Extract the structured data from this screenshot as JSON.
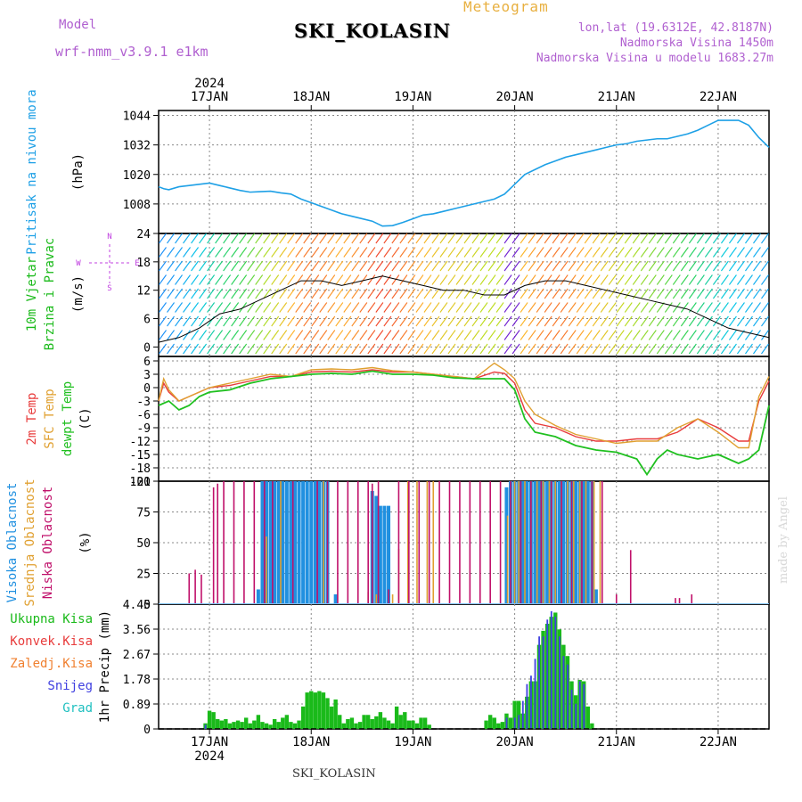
{
  "header": {
    "model_label": "Model",
    "model_name": "wrf-nmm_v3.9.1 e1km",
    "station": "SKI_KOLASIN",
    "product": "Meteogram",
    "lonlat": "lon,lat (19.6312E, 42.8187N)",
    "elevation": "Nadmorska Visina 1450m",
    "elevation_model": "Nadmorska Visina u modelu 1683.27m"
  },
  "footer_station": "SKI_KOLASIN",
  "credit": "made by Angel",
  "colors": {
    "pressure": "#1ea0e6",
    "t2m": "#e83c3c",
    "tsfc": "#e0a030",
    "dewpoint": "#20c020",
    "cloud_high": "#2090e0",
    "cloud_mid": "#e0a030",
    "cloud_low": "#c0106a",
    "precip_total": "#1aba1a",
    "precip_conv": "#e83c3c",
    "precip_freezing": "#f08030",
    "precip_snow": "#4040e0",
    "precip_hail": "#20c0c0",
    "barb_direction_label": "#c040e0"
  },
  "chart_data": [
    {
      "type": "line",
      "panel": "pressure",
      "ylabel": "Pritisak na nivou mora",
      "unit": "(hPa)",
      "ylim": [
        996,
        1046
      ],
      "yticks": [
        1008,
        1020,
        1032,
        1044
      ],
      "top_labels": [
        "2024",
        "17JAN",
        "18JAN",
        "19JAN",
        "20JAN",
        "21JAN",
        "22JAN"
      ],
      "x_unit": "days from 17JAN 00UTC",
      "x_range": [
        -0.5,
        5.5
      ],
      "series": [
        {
          "x": [
            -0.5,
            -0.45,
            -0.4,
            -0.3,
            -0.2,
            -0.1,
            0,
            0.1,
            0.2,
            0.3,
            0.4,
            0.5,
            0.6,
            0.7,
            0.8,
            0.9,
            1.0,
            1.1,
            1.2,
            1.3,
            1.4,
            1.5,
            1.6,
            1.7,
            1.8,
            1.9,
            2.0,
            2.1,
            2.2,
            2.3,
            2.4,
            2.5,
            2.6,
            2.7,
            2.8,
            2.9,
            3.0,
            3.1,
            3.2,
            3.3,
            3.4,
            3.5,
            3.6,
            3.7,
            3.8,
            3.9,
            4.0,
            4.1,
            4.2,
            4.3,
            4.4,
            4.5,
            4.6,
            4.7,
            4.8,
            4.9,
            5.0,
            5.1,
            5.2,
            5.3,
            5.4,
            5.5
          ],
          "values": [
            1015,
            1014.2,
            1013.8,
            1015,
            1015.5,
            1016,
            1016.5,
            1015.5,
            1014.5,
            1013.5,
            1012.8,
            1013,
            1013.2,
            1012.5,
            1012,
            1010,
            1008.5,
            1007,
            1005.5,
            1004,
            1003,
            1002,
            1001,
            999,
            999.2,
            1000.5,
            1002,
            1003.5,
            1004,
            1005,
            1006,
            1007,
            1008,
            1009,
            1010,
            1012,
            1016,
            1020,
            1022,
            1024,
            1025.5,
            1027,
            1028,
            1029,
            1030,
            1031,
            1032,
            1032.5,
            1033.5,
            1034,
            1034.5,
            1034.5,
            1035.5,
            1036.5,
            1038,
            1040,
            1042,
            1042,
            1042,
            1040,
            1035,
            1031
          ]
        }
      ]
    },
    {
      "type": "scatter",
      "panel": "wind",
      "ylabel": "10m Vjetar Brzina i Pravac",
      "unit": "(m/s)",
      "ylim": [
        -2,
        24
      ],
      "yticks": [
        0,
        6,
        12,
        18,
        24
      ],
      "direction_compass": [
        "N",
        "W",
        "E",
        "S"
      ],
      "series": [
        {
          "name": "wind speed",
          "x": [
            -0.5,
            -0.3,
            -0.1,
            0.1,
            0.3,
            0.5,
            0.7,
            0.9,
            1.1,
            1.3,
            1.5,
            1.7,
            1.9,
            2.1,
            2.3,
            2.5,
            2.7,
            2.9,
            3.1,
            3.3,
            3.5,
            3.7,
            3.9,
            4.1,
            4.3,
            4.5,
            4.7,
            4.9,
            5.1,
            5.3,
            5.5
          ],
          "values": [
            1,
            2,
            4,
            7,
            8,
            10,
            12,
            14,
            14,
            13,
            14,
            15,
            14,
            13,
            12,
            12,
            11,
            11,
            13,
            14,
            14,
            13,
            12,
            11,
            10,
            9,
            8,
            6,
            4,
            3,
            2
          ]
        }
      ]
    },
    {
      "type": "line",
      "panel": "temperature",
      "ylabels": [
        "2m Temp",
        "SFC Temp",
        "dewpt Temp"
      ],
      "unit": "(C)",
      "ylim": [
        -21,
        7
      ],
      "yticks": [
        -21,
        -18,
        -15,
        -12,
        -9,
        -6,
        -3,
        0,
        3,
        6
      ],
      "series": [
        {
          "name": "2m Temp",
          "x": [
            -0.5,
            -0.45,
            -0.4,
            -0.3,
            -0.2,
            -0.1,
            0,
            0.2,
            0.4,
            0.6,
            0.8,
            1.0,
            1.2,
            1.4,
            1.6,
            1.8,
            2.0,
            2.2,
            2.4,
            2.6,
            2.8,
            2.9,
            3.0,
            3.1,
            3.2,
            3.4,
            3.6,
            3.8,
            4.0,
            4.2,
            4.4,
            4.6,
            4.8,
            5.0,
            5.2,
            5.3,
            5.4,
            5.5
          ],
          "values": [
            -3,
            1,
            -1,
            -3,
            -2,
            -1,
            0,
            0.5,
            1.5,
            2.5,
            2.5,
            3.5,
            3.7,
            3.5,
            4,
            3.5,
            3.5,
            3,
            2.5,
            2,
            3.5,
            3.2,
            1,
            -5,
            -8,
            -9,
            -11,
            -12,
            -12,
            -11.5,
            -11.5,
            -10,
            -7,
            -9,
            -12,
            -12,
            -3,
            1.5
          ]
        },
        {
          "name": "SFC Temp",
          "x": [
            -0.5,
            -0.45,
            -0.4,
            -0.3,
            -0.2,
            -0.1,
            0,
            0.2,
            0.4,
            0.6,
            0.8,
            1.0,
            1.2,
            1.4,
            1.6,
            1.8,
            2.0,
            2.2,
            2.4,
            2.6,
            2.8,
            2.9,
            3.0,
            3.1,
            3.2,
            3.4,
            3.6,
            3.8,
            4.0,
            4.2,
            4.4,
            4.6,
            4.8,
            5.0,
            5.2,
            5.3,
            5.4,
            5.5
          ],
          "values": [
            -3,
            2,
            -0.5,
            -3,
            -2,
            -1,
            0,
            1,
            2,
            3,
            2.5,
            4,
            4.2,
            4,
            4.5,
            3.8,
            3.5,
            3,
            2.5,
            2,
            5.5,
            4,
            2,
            -3,
            -6,
            -8.5,
            -10.5,
            -11.5,
            -12.5,
            -12,
            -12,
            -9,
            -7,
            -10,
            -13.5,
            -13.5,
            -2,
            2.5
          ]
        },
        {
          "name": "dewpt Temp",
          "x": [
            -0.5,
            -0.4,
            -0.3,
            -0.2,
            -0.1,
            0,
            0.2,
            0.4,
            0.6,
            0.8,
            1.0,
            1.2,
            1.4,
            1.6,
            1.8,
            2.0,
            2.2,
            2.4,
            2.6,
            2.8,
            2.9,
            3.0,
            3.1,
            3.2,
            3.4,
            3.6,
            3.8,
            4.0,
            4.2,
            4.3,
            4.4,
            4.5,
            4.6,
            4.8,
            5.0,
            5.2,
            5.3,
            5.4,
            5.5
          ],
          "values": [
            -4,
            -3,
            -5,
            -4,
            -2,
            -1,
            -0.5,
            1,
            2,
            2.5,
            3,
            3.2,
            3,
            3.7,
            3,
            3,
            2.8,
            2.2,
            2,
            2,
            2,
            -0.5,
            -7,
            -10,
            -11,
            -13,
            -14,
            -14.5,
            -16,
            -19.5,
            -16,
            -14,
            -15,
            -16,
            -15,
            -17,
            -16,
            -14,
            -4
          ]
        }
      ]
    },
    {
      "type": "bar",
      "panel": "clouds",
      "ylabels": [
        "Visoka Oblacnost",
        "Srednja Oblacnost",
        "Niska Oblacnost"
      ],
      "unit": "(%)",
      "ylim": [
        0,
        100
      ],
      "yticks": [
        0,
        25,
        50,
        75,
        100
      ],
      "series": [
        {
          "name": "Visoka Oblacnost",
          "x": [
            0.48,
            0.52,
            0.56,
            0.6,
            0.64,
            0.68,
            0.72,
            0.76,
            0.8,
            0.84,
            0.88,
            0.92,
            0.96,
            1.0,
            1.04,
            1.08,
            1.12,
            1.16,
            1.24,
            1.6,
            1.64,
            1.68,
            1.72,
            1.76,
            2.92,
            2.96,
            3.0,
            3.04,
            3.08,
            3.12,
            3.16,
            3.2,
            3.24,
            3.28,
            3.32,
            3.36,
            3.4,
            3.44,
            3.48,
            3.52,
            3.56,
            3.6,
            3.64,
            3.68,
            3.72,
            3.76,
            3.8
          ],
          "values": [
            12,
            100,
            100,
            100,
            100,
            100,
            100,
            100,
            100,
            100,
            100,
            100,
            100,
            100,
            100,
            100,
            100,
            100,
            8,
            92,
            88,
            80,
            80,
            80,
            95,
            100,
            100,
            100,
            100,
            100,
            100,
            100,
            100,
            100,
            100,
            100,
            100,
            100,
            100,
            100,
            100,
            100,
            100,
            100,
            100,
            100,
            12
          ]
        },
        {
          "name": "Srednja Oblacnost",
          "x": [
            0.56,
            0.7,
            1.12,
            1.56,
            1.64,
            1.8,
            1.86,
            1.95,
            2.04,
            2.14,
            2.2,
            2.93,
            3.0,
            3.04,
            3.1,
            3.16,
            3.22,
            3.28,
            3.34,
            3.4,
            3.46,
            3.52,
            3.58,
            3.64,
            3.7,
            3.78,
            3.84
          ],
          "values": [
            55,
            100,
            100,
            10,
            8,
            8,
            45,
            100,
            100,
            100,
            100,
            72,
            100,
            100,
            100,
            100,
            100,
            100,
            100,
            100,
            100,
            100,
            100,
            100,
            100,
            100,
            100
          ]
        },
        {
          "name": "Niska Oblacnost",
          "x": [
            -0.2,
            -0.14,
            -0.08,
            0.04,
            0.08,
            0.14,
            0.24,
            0.34,
            0.44,
            0.54,
            0.62,
            0.82,
            1.06,
            1.16,
            1.26,
            1.36,
            1.46,
            1.56,
            1.6,
            1.66,
            1.76,
            1.86,
            1.96,
            2.06,
            2.16,
            2.26,
            2.36,
            2.46,
            2.56,
            2.66,
            2.76,
            2.86,
            2.96,
            3.06,
            3.16,
            3.26,
            3.36,
            3.46,
            3.56,
            3.66,
            3.76,
            3.86,
            4.0,
            4.14,
            4.58,
            4.62,
            4.74
          ],
          "values": [
            25,
            28,
            24,
            95,
            98,
            100,
            100,
            100,
            100,
            100,
            100,
            100,
            100,
            100,
            100,
            100,
            100,
            100,
            98,
            100,
            12,
            100,
            100,
            100,
            100,
            100,
            100,
            100,
            100,
            100,
            100,
            100,
            100,
            100,
            100,
            100,
            100,
            100,
            100,
            100,
            100,
            100,
            8,
            44,
            5,
            5,
            8
          ]
        }
      ]
    },
    {
      "type": "bar",
      "panel": "precipitation",
      "ylabel": "1hr Precip",
      "unit": "(mm)",
      "ylim": [
        0,
        4.45
      ],
      "yticks": [
        0,
        0.89,
        1.78,
        2.67,
        3.56,
        4.45
      ],
      "legend": [
        "Ukupna Kisa",
        "Konvek.Kisa",
        "Zaledj.Kisa",
        "Snijeg",
        "Grad"
      ],
      "x_labels": [
        "17JAN",
        "18JAN",
        "19JAN",
        "20JAN",
        "21JAN",
        "22JAN"
      ],
      "x_sublabel": "2024",
      "series": [
        {
          "name": "Ukupna Kisa",
          "x": [
            -0.04,
            0.0,
            0.04,
            0.08,
            0.12,
            0.16,
            0.2,
            0.24,
            0.28,
            0.32,
            0.36,
            0.4,
            0.44,
            0.48,
            0.52,
            0.56,
            0.6,
            0.64,
            0.68,
            0.72,
            0.76,
            0.8,
            0.84,
            0.88,
            0.92,
            0.96,
            1.0,
            1.04,
            1.08,
            1.12,
            1.16,
            1.2,
            1.24,
            1.28,
            1.32,
            1.36,
            1.4,
            1.44,
            1.48,
            1.52,
            1.56,
            1.6,
            1.64,
            1.68,
            1.72,
            1.76,
            1.8,
            1.84,
            1.88,
            1.92,
            1.96,
            2.0,
            2.04,
            2.08,
            2.12,
            2.16,
            2.72,
            2.76,
            2.8,
            2.84,
            2.88,
            2.92,
            2.96,
            3.0,
            3.04,
            3.08,
            3.12,
            3.16,
            3.2,
            3.24,
            3.28,
            3.32,
            3.36,
            3.4,
            3.44,
            3.48,
            3.52,
            3.56,
            3.6,
            3.64,
            3.68,
            3.72,
            3.76
          ],
          "values": [
            0.2,
            0.65,
            0.6,
            0.35,
            0.3,
            0.35,
            0.2,
            0.25,
            0.3,
            0.25,
            0.4,
            0.2,
            0.3,
            0.5,
            0.25,
            0.2,
            0.15,
            0.35,
            0.25,
            0.4,
            0.5,
            0.25,
            0.2,
            0.3,
            0.8,
            1.3,
            1.35,
            1.3,
            1.35,
            1.3,
            1.1,
            0.8,
            1.05,
            0.5,
            0.2,
            0.35,
            0.4,
            0.2,
            0.25,
            0.5,
            0.5,
            0.35,
            0.45,
            0.6,
            0.4,
            0.3,
            0.2,
            0.8,
            0.5,
            0.6,
            0.3,
            0.3,
            0.2,
            0.4,
            0.4,
            0.15,
            0.3,
            0.5,
            0.4,
            0.2,
            0.25,
            0.55,
            0.4,
            1.0,
            1.0,
            0.55,
            1.15,
            1.7,
            1.7,
            3.0,
            3.5,
            3.75,
            4.0,
            4.15,
            3.55,
            3.0,
            2.6,
            1.7,
            1.2,
            1.75,
            1.7,
            0.8,
            0.2
          ]
        },
        {
          "name": "Snijeg",
          "x": [
            -0.04,
            2.92,
            3.0,
            3.04,
            3.08,
            3.12,
            3.16,
            3.2,
            3.24,
            3.28,
            3.32,
            3.36,
            3.4,
            3.44,
            3.48,
            3.52,
            3.56,
            3.6,
            3.64,
            3.68
          ],
          "values": [
            0.15,
            0.4,
            0.4,
            0.5,
            1.0,
            1.6,
            1.9,
            2.5,
            3.3,
            3.3,
            3.9,
            4.2,
            4.0,
            3.3,
            2.6,
            2.3,
            1.4,
            0.9,
            1.7,
            1.6
          ]
        }
      ]
    }
  ]
}
